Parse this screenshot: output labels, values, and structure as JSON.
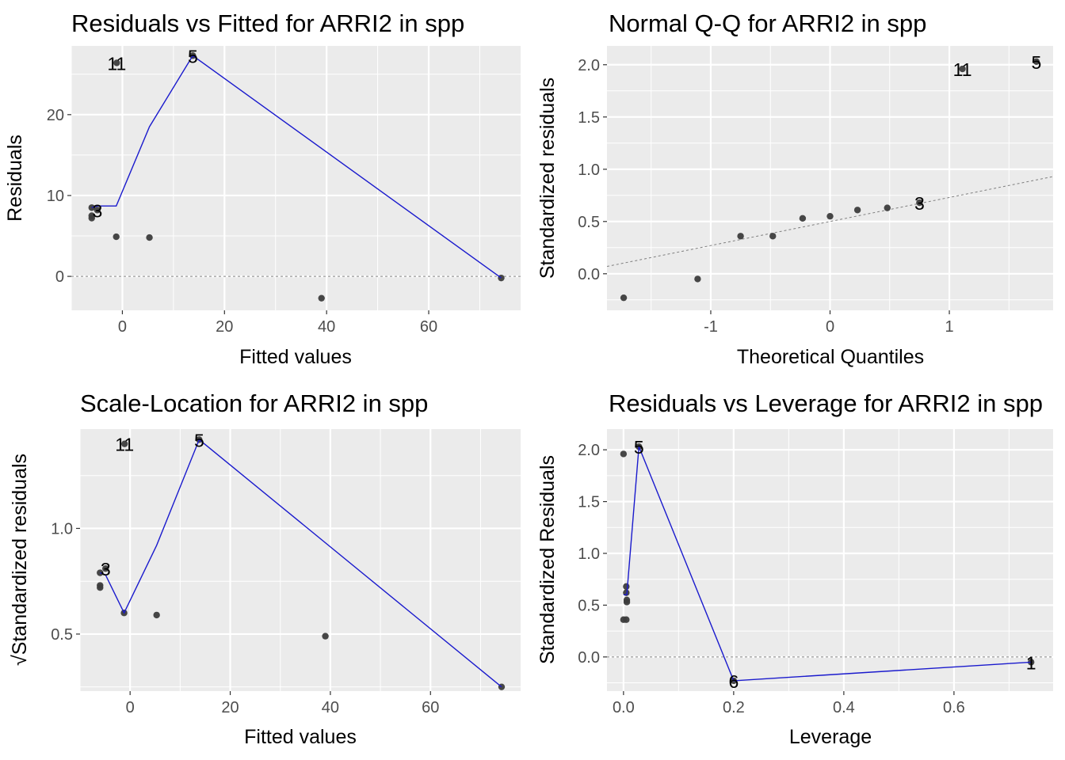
{
  "chart_data": [
    {
      "id": "rvf",
      "type": "scatter",
      "title": "Residuals vs Fitted for ARRI2 in spp",
      "xlabel": "Fitted values",
      "ylabel": "Residuals",
      "xlim": [
        -10,
        78
      ],
      "ylim": [
        -4.2,
        28.5
      ],
      "xticks": [
        0,
        20,
        40,
        60
      ],
      "xtick_labels": [
        "0",
        "20",
        "40",
        "60"
      ],
      "yticks": [
        0,
        10,
        20
      ],
      "ytick_labels": [
        "0",
        "10",
        "20"
      ],
      "grid": true,
      "refline": {
        "type": "hline",
        "y": 0
      },
      "points": [
        {
          "x": -1.1,
          "y": 26.4,
          "label": "11"
        },
        {
          "x": 13.8,
          "y": 27.3,
          "label": "5"
        },
        {
          "x": -4.9,
          "y": 8.2,
          "label": "3"
        },
        {
          "x": -6.0,
          "y": 8.5,
          "label": ""
        },
        {
          "x": -6.0,
          "y": 7.2,
          "label": ""
        },
        {
          "x": -6.0,
          "y": 7.5,
          "label": ""
        },
        {
          "x": -1.2,
          "y": 4.9,
          "label": ""
        },
        {
          "x": 5.3,
          "y": 4.8,
          "label": ""
        },
        {
          "x": 39.0,
          "y": -2.7,
          "label": ""
        },
        {
          "x": 74.2,
          "y": -0.2,
          "label": ""
        }
      ],
      "smooth": [
        {
          "x": -6.0,
          "y": 8.5
        },
        {
          "x": -4.9,
          "y": 8.7
        },
        {
          "x": -1.2,
          "y": 8.7
        },
        {
          "x": 5.3,
          "y": 18.5
        },
        {
          "x": 13.8,
          "y": 27.3
        },
        {
          "x": 74.2,
          "y": -0.2
        }
      ]
    },
    {
      "id": "qq",
      "type": "scatter",
      "title": "Normal Q-Q for ARRI2 in spp",
      "xlabel": "Theoretical Quantiles",
      "ylabel": "Standardized residuals",
      "xlim": [
        -1.87,
        1.87
      ],
      "ylim": [
        -0.35,
        2.18
      ],
      "xticks": [
        -1,
        0,
        1
      ],
      "xtick_labels": [
        "-1",
        "0",
        "1"
      ],
      "yticks": [
        0.0,
        0.5,
        1.0,
        1.5,
        2.0
      ],
      "ytick_labels": [
        "0.0",
        "0.5",
        "1.0",
        "1.5",
        "2.0"
      ],
      "grid": true,
      "refline": {
        "type": "abline",
        "intercept": 0.5,
        "slope": 0.23
      },
      "points": [
        {
          "x": -1.73,
          "y": -0.23,
          "label": ""
        },
        {
          "x": -1.11,
          "y": -0.05,
          "label": ""
        },
        {
          "x": -0.75,
          "y": 0.36,
          "label": ""
        },
        {
          "x": -0.48,
          "y": 0.36,
          "label": ""
        },
        {
          "x": -0.23,
          "y": 0.53,
          "label": ""
        },
        {
          "x": 0.0,
          "y": 0.55,
          "label": ""
        },
        {
          "x": 0.23,
          "y": 0.61,
          "label": ""
        },
        {
          "x": 0.48,
          "y": 0.63,
          "label": ""
        },
        {
          "x": 0.75,
          "y": 0.68,
          "label": "3"
        },
        {
          "x": 1.11,
          "y": 1.96,
          "label": "11"
        },
        {
          "x": 1.73,
          "y": 2.03,
          "label": "5"
        }
      ]
    },
    {
      "id": "sl",
      "type": "scatter",
      "title": "Scale-Location for ARRI2 in spp",
      "xlabel": "Fitted values",
      "ylabel": "√Standardized residuals",
      "xlim": [
        -10,
        78
      ],
      "ylim": [
        0.23,
        1.47
      ],
      "xticks": [
        0,
        20,
        40,
        60
      ],
      "xtick_labels": [
        "0",
        "20",
        "40",
        "60"
      ],
      "yticks": [
        0.5,
        1.0
      ],
      "ytick_labels": [
        "0.5",
        "1.0"
      ],
      "grid": true,
      "points": [
        {
          "x": -1.1,
          "y": 1.4,
          "label": "11"
        },
        {
          "x": 13.8,
          "y": 1.42,
          "label": "5"
        },
        {
          "x": -4.9,
          "y": 0.81,
          "label": "3"
        },
        {
          "x": -6.0,
          "y": 0.79,
          "label": ""
        },
        {
          "x": -6.0,
          "y": 0.73,
          "label": ""
        },
        {
          "x": -6.0,
          "y": 0.72,
          "label": ""
        },
        {
          "x": -1.2,
          "y": 0.6,
          "label": ""
        },
        {
          "x": 5.3,
          "y": 0.59,
          "label": ""
        },
        {
          "x": 39.0,
          "y": 0.49,
          "label": ""
        },
        {
          "x": 74.2,
          "y": 0.25,
          "label": ""
        }
      ],
      "smooth": [
        {
          "x": -6.0,
          "y": 0.79
        },
        {
          "x": -4.9,
          "y": 0.78
        },
        {
          "x": -1.2,
          "y": 0.6
        },
        {
          "x": 5.3,
          "y": 0.92
        },
        {
          "x": 13.8,
          "y": 1.42
        },
        {
          "x": 74.2,
          "y": 0.25
        }
      ]
    },
    {
      "id": "rvl",
      "type": "scatter",
      "title": "Residuals vs Leverage for ARRI2 in spp",
      "xlabel": "Leverage",
      "ylabel": "Standardized Residuals",
      "xlim": [
        -0.03,
        0.78
      ],
      "ylim": [
        -0.33,
        2.2
      ],
      "xticks": [
        0.0,
        0.2,
        0.4,
        0.6
      ],
      "xtick_labels": [
        "0.0",
        "0.2",
        "0.4",
        "0.6"
      ],
      "yticks": [
        0.0,
        0.5,
        1.0,
        1.5,
        2.0
      ],
      "ytick_labels": [
        "0.0",
        "0.5",
        "1.0",
        "1.5",
        "2.0"
      ],
      "grid": true,
      "refline": {
        "type": "hline",
        "y": 0
      },
      "points": [
        {
          "x": 0.0,
          "y": 1.96,
          "label": ""
        },
        {
          "x": 0.028,
          "y": 2.03,
          "label": "5"
        },
        {
          "x": 0.005,
          "y": 0.68,
          "label": ""
        },
        {
          "x": 0.005,
          "y": 0.62,
          "label": ""
        },
        {
          "x": 0.006,
          "y": 0.55,
          "label": ""
        },
        {
          "x": 0.006,
          "y": 0.53,
          "label": ""
        },
        {
          "x": 0.0,
          "y": 0.36,
          "label": ""
        },
        {
          "x": 0.005,
          "y": 0.36,
          "label": ""
        },
        {
          "x": 0.2,
          "y": -0.23,
          "label": "6"
        },
        {
          "x": 0.74,
          "y": -0.05,
          "label": "1"
        }
      ],
      "smooth": [
        {
          "x": 0.0,
          "y": 0.6
        },
        {
          "x": 0.006,
          "y": 0.6
        },
        {
          "x": 0.028,
          "y": 2.03
        },
        {
          "x": 0.2,
          "y": -0.23
        },
        {
          "x": 0.74,
          "y": -0.05
        }
      ]
    }
  ]
}
